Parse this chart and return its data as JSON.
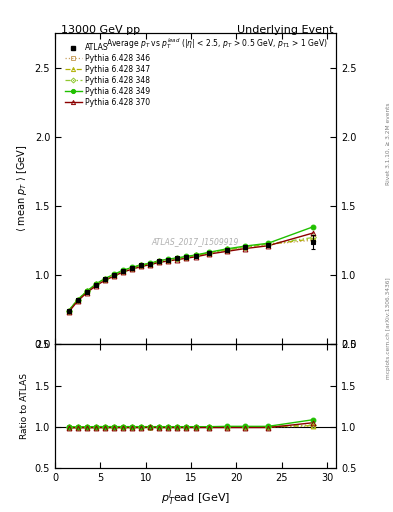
{
  "title_left": "13000 GeV pp",
  "title_right": "Underlying Event",
  "ylabel_main": "⟨ mean p_T ⟩ [GeV]",
  "ylabel_ratio": "Ratio to ATLAS",
  "xlabel": "p_T^lead [GeV]",
  "watermark": "ATLAS_2017_I1509919",
  "right_label": "mcplots.cern.ch [arXiv:1306.3436]",
  "rivet_label": "Rivet 3.1.10, ≥ 3.2M events",
  "ylim_main": [
    0.5,
    2.75
  ],
  "ylim_ratio": [
    0.5,
    2.0
  ],
  "yticks_main": [
    0.5,
    1.0,
    1.5,
    2.0,
    2.5
  ],
  "yticks_ratio": [
    0.5,
    1.0,
    1.5,
    2.0
  ],
  "xlim": [
    0,
    31
  ],
  "xticks": [
    0,
    5,
    10,
    15,
    20,
    25,
    30
  ],
  "data_x": [
    1.5,
    2.5,
    3.5,
    4.5,
    5.5,
    6.5,
    7.5,
    8.5,
    9.5,
    10.5,
    11.5,
    12.5,
    13.5,
    14.5,
    15.5,
    17.0,
    19.0,
    21.0,
    23.5,
    28.5
  ],
  "data_y": [
    0.74,
    0.82,
    0.88,
    0.93,
    0.97,
    1.0,
    1.03,
    1.05,
    1.07,
    1.08,
    1.1,
    1.11,
    1.12,
    1.13,
    1.14,
    1.16,
    1.18,
    1.2,
    1.22,
    1.24
  ],
  "data_yerr": [
    0.01,
    0.01,
    0.01,
    0.005,
    0.005,
    0.005,
    0.005,
    0.005,
    0.005,
    0.005,
    0.005,
    0.005,
    0.005,
    0.005,
    0.005,
    0.007,
    0.01,
    0.01,
    0.015,
    0.05
  ],
  "mc_x": [
    1.5,
    2.5,
    3.5,
    4.5,
    5.5,
    6.5,
    7.5,
    8.5,
    9.5,
    10.5,
    11.5,
    12.5,
    13.5,
    14.5,
    15.5,
    17.0,
    19.0,
    21.0,
    23.5,
    28.5
  ],
  "py346_y": [
    0.742,
    0.822,
    0.882,
    0.932,
    0.972,
    1.002,
    1.032,
    1.052,
    1.072,
    1.082,
    1.102,
    1.112,
    1.122,
    1.132,
    1.142,
    1.162,
    1.182,
    1.202,
    1.222,
    1.252
  ],
  "py347_y": [
    0.742,
    0.822,
    0.882,
    0.932,
    0.972,
    1.002,
    1.032,
    1.052,
    1.072,
    1.082,
    1.102,
    1.112,
    1.122,
    1.132,
    1.142,
    1.162,
    1.182,
    1.202,
    1.222,
    1.262
  ],
  "py348_y": [
    0.742,
    0.822,
    0.882,
    0.932,
    0.972,
    1.002,
    1.032,
    1.052,
    1.072,
    1.082,
    1.102,
    1.112,
    1.122,
    1.132,
    1.142,
    1.162,
    1.185,
    1.205,
    1.225,
    1.272
  ],
  "py349_y": [
    0.742,
    0.822,
    0.882,
    0.935,
    0.975,
    1.005,
    1.035,
    1.055,
    1.075,
    1.085,
    1.105,
    1.115,
    1.125,
    1.135,
    1.145,
    1.165,
    1.19,
    1.21,
    1.23,
    1.35
  ],
  "py370_y": [
    0.732,
    0.812,
    0.872,
    0.922,
    0.962,
    0.992,
    1.022,
    1.042,
    1.062,
    1.075,
    1.092,
    1.102,
    1.112,
    1.122,
    1.132,
    1.152,
    1.172,
    1.192,
    1.212,
    1.305
  ],
  "py346_color": "#c8a060",
  "py347_color": "#b0b000",
  "py348_color": "#90c830",
  "py349_color": "#20c000",
  "py370_color": "#8b0000",
  "data_color": "#000000"
}
